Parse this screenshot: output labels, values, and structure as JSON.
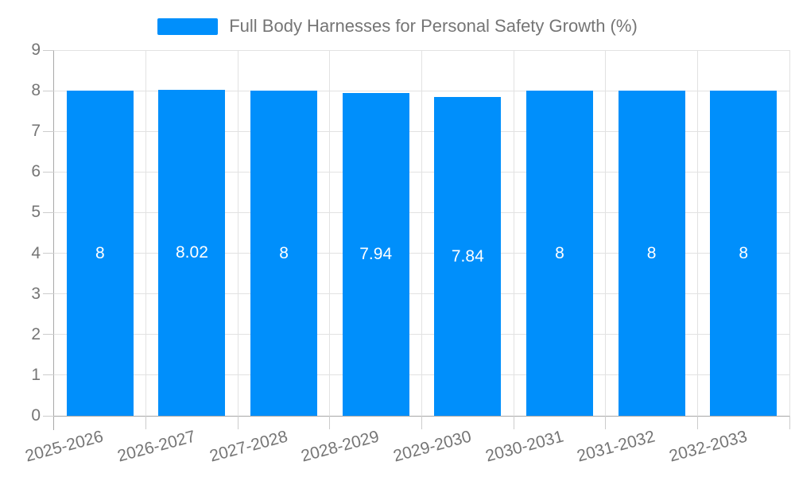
{
  "legend": {
    "series_label": "Full Body Harnesses for Personal Safety Growth (%)"
  },
  "chart_data": {
    "type": "bar",
    "title": "Full Body Harnesses for Personal Safety Growth (%)",
    "xlabel": "",
    "ylabel": "",
    "categories": [
      "2025-2026",
      "2026-2027",
      "2027-2028",
      "2028-2029",
      "2029-2030",
      "2030-2031",
      "2031-2032",
      "2032-2033"
    ],
    "values": [
      8,
      8.02,
      8,
      7.94,
      7.84,
      8,
      8,
      8
    ],
    "value_labels": [
      "8",
      "8.02",
      "8",
      "7.94",
      "7.84",
      "8",
      "8",
      "8"
    ],
    "ylim": [
      0,
      9
    ],
    "yticks": [
      0,
      1,
      2,
      3,
      4,
      5,
      6,
      7,
      8,
      9
    ],
    "grid": true,
    "legend_position": "top",
    "colors": {
      "bar": "#008FFB",
      "label_text": "#757575",
      "value_text": "#ffffff",
      "gridline": "#e2e2e2",
      "axis_line": "#a8a8a8",
      "tick": "#cccccc"
    }
  }
}
